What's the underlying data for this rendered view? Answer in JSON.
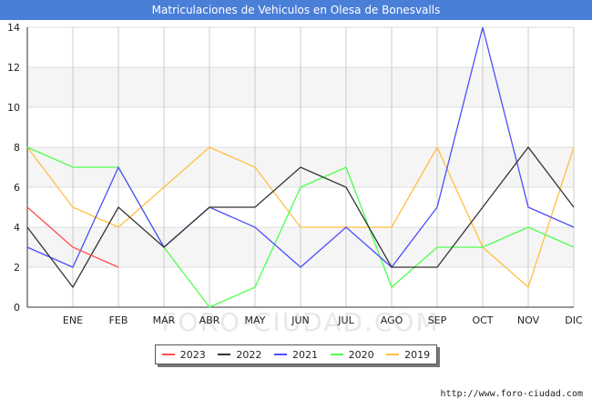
{
  "title": "Matriculaciones de Vehiculos en Olesa de Bonesvalls",
  "source": "http://www.foro-ciudad.com",
  "watermark": "FORO-CIUDAD.COM",
  "chart_data": {
    "type": "line",
    "title": "Matriculaciones de Vehiculos en Olesa de Bonesvalls",
    "categories": [
      "",
      "ENE",
      "FEB",
      "MAR",
      "ABR",
      "MAY",
      "JUN",
      "JUL",
      "AGO",
      "SEP",
      "OCT",
      "NOV",
      "DIC"
    ],
    "ylim": [
      0,
      14
    ],
    "yticks": [
      0,
      2,
      4,
      6,
      8,
      10,
      12,
      14
    ],
    "grid": true,
    "legend_position": "bottom",
    "series": [
      {
        "name": "2023",
        "color": "#ff4d4d",
        "values": [
          5,
          3,
          2,
          null,
          null,
          null,
          null,
          null,
          null,
          null,
          null,
          null,
          null
        ]
      },
      {
        "name": "2022",
        "color": "#333333",
        "values": [
          4,
          1,
          5,
          3,
          5,
          5,
          7,
          6,
          2,
          2,
          5,
          8,
          5
        ]
      },
      {
        "name": "2021",
        "color": "#4d4dff",
        "values": [
          3,
          2,
          7,
          3,
          5,
          4,
          2,
          4,
          2,
          5,
          14,
          5,
          4
        ]
      },
      {
        "name": "2020",
        "color": "#4dff4d",
        "values": [
          8,
          7,
          7,
          3,
          0,
          1,
          6,
          7,
          1,
          3,
          3,
          4,
          3
        ]
      },
      {
        "name": "2019",
        "color": "#ffbf40",
        "values": [
          8,
          5,
          4,
          6,
          8,
          7,
          4,
          4,
          4,
          8,
          3,
          1,
          8
        ]
      }
    ]
  }
}
